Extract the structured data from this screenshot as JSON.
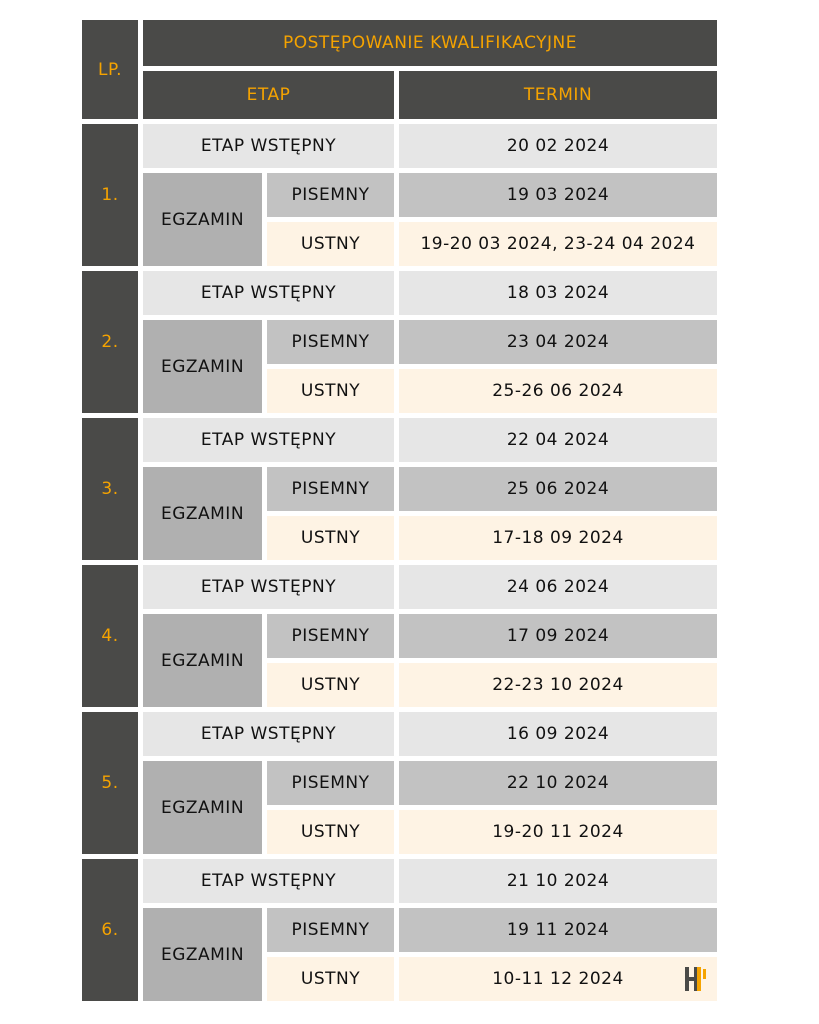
{
  "header": {
    "lp": "LP.",
    "title": "POSTĘPOWANIE KWALIFIKACYJNE",
    "etap": "ETAP",
    "termin": "TERMIN"
  },
  "labels": {
    "wstepny": "ETAP WSTĘPNY",
    "egzamin": "EGZAMIN",
    "pisemny": "PISEMNY",
    "ustny": "USTNY"
  },
  "groups": [
    {
      "lp": "1.",
      "wstepny": "20 02 2024",
      "pisemny": "19 03 2024",
      "ustny": "19-20 03 2024, 23-24 04 2024"
    },
    {
      "lp": "2.",
      "wstepny": "18 03 2024",
      "pisemny": "23 04 2024",
      "ustny": "25-26 06 2024"
    },
    {
      "lp": "3.",
      "wstepny": "22 04 2024",
      "pisemny": "25 06 2024",
      "ustny": "17-18 09 2024"
    },
    {
      "lp": "4.",
      "wstepny": "24 06 2024",
      "pisemny": "17 09 2024",
      "ustny": "22-23 10 2024"
    },
    {
      "lp": "5.",
      "wstepny": "16 09 2024",
      "pisemny": "22 10 2024",
      "ustny": "19-20 11 2024"
    },
    {
      "lp": "6.",
      "wstepny": "21 10 2024",
      "pisemny": "19 11 2024",
      "ustny": "10-11 12 2024"
    }
  ],
  "colors": {
    "dark": "#4a4a48",
    "accent": "#f5a300",
    "wstepny": "#e6e6e6",
    "pisemny": "#c2c2c2",
    "egzamin": "#b0b0b0",
    "ustny": "#fef3e4"
  },
  "logo": {
    "icon": "hr-logo-icon"
  }
}
